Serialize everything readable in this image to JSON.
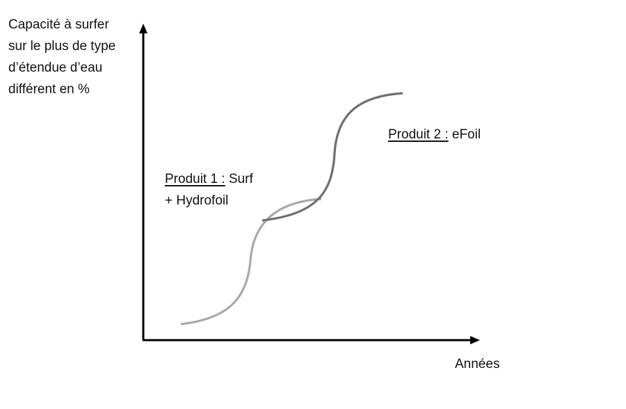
{
  "axes": {
    "y_label_lines": [
      "Capacité à surfer",
      "sur le plus de type",
      "d’étendue d’eau",
      "différent en %"
    ],
    "x_label": "Années"
  },
  "curves": [
    {
      "id": "produit-1",
      "label_name": "Produit 1 :",
      "label_suffix": " Surf",
      "label_line2": "+ Hydrofoil",
      "color": "#a9a9a9"
    },
    {
      "id": "produit-2",
      "label_name": "Produit 2 :",
      "label_suffix": " eFoil",
      "color": "#6f6f6f"
    }
  ],
  "colors": {
    "axis": "#000000",
    "text": "#111111"
  }
}
